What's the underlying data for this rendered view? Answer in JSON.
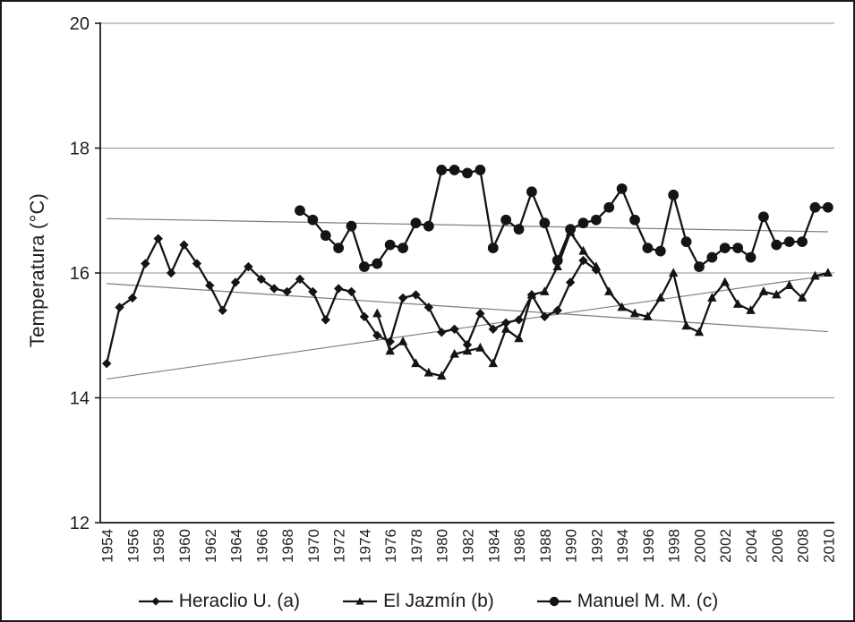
{
  "figure": {
    "background": "#ffffff",
    "border_color": "#1a1a1a"
  },
  "chart_data": {
    "type": "line",
    "title": "",
    "xlabel": "",
    "ylabel": "Temperatura (°C)",
    "ylim": [
      12,
      20
    ],
    "ytick_step": 2,
    "ytick_labels": [
      "12",
      "14",
      "16",
      "18",
      "20"
    ],
    "x_range": [
      1954,
      2010
    ],
    "xtick_step": 2,
    "grid": "horizontal gridlines at 14, 16, 18, 20",
    "gridline_color": "#8f8f8f",
    "series_color": "#141414",
    "trendline_color": "#7d7d7d",
    "legend_position": "bottom-center",
    "series": [
      {
        "name": "Heraclio U. (a)",
        "marker": "diamond",
        "start_year": 1954,
        "values": [
          14.55,
          15.45,
          15.6,
          16.15,
          16.55,
          16.0,
          16.45,
          16.15,
          15.8,
          15.4,
          15.85,
          16.1,
          15.9,
          15.75,
          15.7,
          15.9,
          15.7,
          15.25,
          15.75,
          15.7,
          15.3,
          15.0,
          14.9,
          15.6,
          15.65,
          15.45,
          15.05,
          15.1,
          14.85,
          15.35,
          15.1,
          15.2,
          15.25,
          15.65,
          15.3,
          15.4,
          15.85,
          16.2,
          16.05
        ]
      },
      {
        "name": "El Jazmín (b)",
        "marker": "triangle",
        "start_year": 1975,
        "values": [
          15.35,
          14.75,
          14.9,
          14.55,
          14.4,
          14.35,
          14.7,
          14.75,
          14.8,
          14.55,
          15.1,
          14.95,
          15.65,
          15.7,
          16.1,
          16.65,
          16.35,
          16.1,
          15.7,
          15.45,
          15.35,
          15.3,
          15.6,
          16.0,
          15.15,
          15.05,
          15.6,
          15.85,
          15.5,
          15.4,
          15.7,
          15.65,
          15.8,
          15.6,
          15.95,
          16.0
        ]
      },
      {
        "name": "Manuel M. M. (c)",
        "marker": "circle",
        "start_year": 1969,
        "values": [
          17.0,
          16.85,
          16.6,
          16.4,
          16.75,
          16.1,
          16.15,
          16.45,
          16.4,
          16.8,
          16.75,
          17.65,
          17.65,
          17.6,
          17.65,
          16.4,
          16.85,
          16.7,
          17.3,
          16.8,
          16.2,
          16.7,
          16.8,
          16.85,
          17.05,
          17.35,
          16.85,
          16.4,
          16.35,
          17.25,
          16.5,
          16.1,
          16.25,
          16.4,
          16.4,
          16.25,
          16.9,
          16.45,
          16.5,
          16.5,
          17.05,
          17.05
        ]
      }
    ],
    "trendlines": [
      {
        "series": "Heraclio U. (a)",
        "start_value": 15.83,
        "end_value": 15.06
      },
      {
        "series": "El Jazmín (b)",
        "start_value": 14.3,
        "end_value": 15.96
      },
      {
        "series": "Manuel M. M. (c)",
        "start_value": 16.87,
        "end_value": 16.66
      }
    ]
  }
}
